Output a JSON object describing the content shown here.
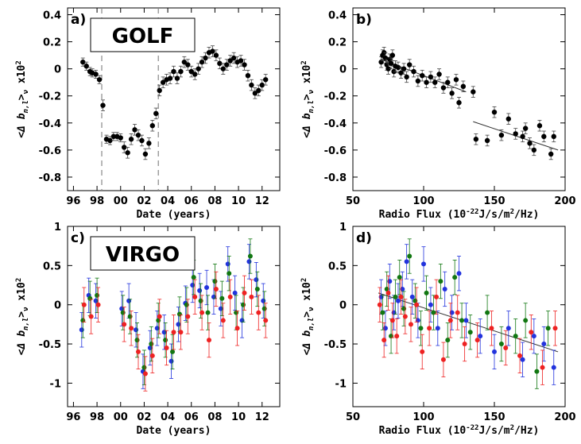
{
  "chart_data": [
    {
      "panel": "a)",
      "type": "scatter",
      "instrument_label": "GOLF",
      "xlabel": "Date (years)",
      "ylabel": "<Δ b_{n,l}>_ν x10^2",
      "xlim": [
        95.5,
        113.5
      ],
      "ylim": [
        -0.9,
        0.45
      ],
      "xticks": [
        96,
        98,
        100,
        102,
        104,
        106,
        108,
        110,
        112
      ],
      "xtick_labels": [
        "96",
        "98",
        "00",
        "02",
        "04",
        "06",
        "08",
        "10",
        "12"
      ],
      "yticks": [
        -0.8,
        -0.6,
        -0.4,
        -0.2,
        0,
        0.2,
        0.4
      ],
      "ytick_labels": [
        "-0.8",
        "-0.6",
        "-0.4",
        "-0.2",
        "0",
        "0.2",
        "0.4"
      ],
      "vlines": [
        98.4,
        103.2
      ],
      "error_bars": true,
      "series": [
        {
          "color": "#000000",
          "x": [
            96.8,
            97.1,
            97.4,
            97.6,
            97.9,
            98.2,
            98.5,
            98.8,
            99.1,
            99.4,
            99.7,
            100.0,
            100.3,
            100.6,
            100.9,
            101.2,
            101.5,
            101.8,
            102.1,
            102.4,
            102.7,
            103.0,
            103.3,
            103.6,
            103.9,
            104.2,
            104.5,
            104.8,
            105.1,
            105.4,
            105.7,
            106.0,
            106.3,
            106.6,
            106.9,
            107.2,
            107.5,
            107.8,
            108.1,
            108.4,
            108.7,
            109.0,
            109.3,
            109.6,
            109.9,
            110.2,
            110.5,
            110.8,
            111.1,
            111.4,
            111.7,
            112.0,
            112.3
          ],
          "y": [
            0.05,
            0.02,
            -0.02,
            -0.03,
            -0.04,
            -0.08,
            -0.27,
            -0.52,
            -0.53,
            -0.5,
            -0.5,
            -0.51,
            -0.58,
            -0.62,
            -0.52,
            -0.45,
            -0.49,
            -0.53,
            -0.63,
            -0.55,
            -0.42,
            -0.33,
            -0.16,
            -0.1,
            -0.08,
            -0.07,
            -0.02,
            -0.07,
            -0.02,
            0.05,
            0.03,
            -0.02,
            -0.04,
            0.0,
            0.05,
            0.08,
            0.12,
            0.13,
            0.1,
            0.04,
            0.0,
            0.03,
            0.06,
            0.08,
            0.05,
            0.06,
            0.03,
            -0.05,
            -0.12,
            -0.18,
            -0.16,
            -0.12,
            -0.08
          ],
          "err": [
            0.03,
            0.03,
            0.03,
            0.03,
            0.03,
            0.03,
            0.04,
            0.03,
            0.03,
            0.03,
            0.03,
            0.03,
            0.04,
            0.04,
            0.04,
            0.04,
            0.04,
            0.04,
            0.04,
            0.04,
            0.04,
            0.04,
            0.04,
            0.04,
            0.04,
            0.04,
            0.04,
            0.04,
            0.04,
            0.04,
            0.04,
            0.04,
            0.04,
            0.04,
            0.04,
            0.04,
            0.04,
            0.04,
            0.04,
            0.04,
            0.04,
            0.04,
            0.04,
            0.04,
            0.04,
            0.04,
            0.04,
            0.04,
            0.04,
            0.04,
            0.04,
            0.04,
            0.04
          ]
        }
      ]
    },
    {
      "panel": "b)",
      "type": "scatter",
      "xlabel": "Radio Flux (10^-22 J/s/m^2/Hz)",
      "ylabel": "<Δ b_{n,l}>_ν x10^2",
      "xlim": [
        50,
        200
      ],
      "ylim": [
        -0.9,
        0.45
      ],
      "xticks": [
        50,
        100,
        150,
        200
      ],
      "xtick_labels": [
        "50",
        "100",
        "150",
        "200"
      ],
      "yticks": [
        -0.8,
        -0.6,
        -0.4,
        -0.2,
        0,
        0.2,
        0.4
      ],
      "ytick_labels": [
        "-0.8",
        "-0.6",
        "-0.4",
        "-0.2",
        "0",
        "0.2",
        "0.4"
      ],
      "error_bars": true,
      "fit_lines": [
        {
          "x": [
            70,
            130
          ],
          "y": [
            0.07,
            -0.17
          ]
        },
        {
          "x": [
            135,
            195
          ],
          "y": [
            -0.39,
            -0.6
          ]
        }
      ],
      "series": [
        {
          "color": "#000000",
          "x": [
            70,
            71,
            72,
            73,
            74,
            75,
            76,
            77,
            78,
            79,
            80,
            82,
            84,
            86,
            88,
            90,
            93,
            96,
            99,
            102,
            105,
            108,
            111,
            114,
            117,
            120,
            123,
            125,
            128,
            135,
            137,
            145,
            150,
            155,
            160,
            165,
            170,
            172,
            175,
            178,
            182,
            185,
            190,
            192
          ],
          "y": [
            0.05,
            0.1,
            0.12,
            0.08,
            0.03,
            0.0,
            0.07,
            0.04,
            0.1,
            -0.02,
            0.02,
            0.01,
            -0.03,
            0.0,
            -0.06,
            0.03,
            -0.02,
            -0.09,
            -0.05,
            -0.1,
            -0.06,
            -0.1,
            -0.04,
            -0.14,
            -0.1,
            -0.18,
            -0.08,
            -0.25,
            -0.13,
            -0.17,
            -0.52,
            -0.53,
            -0.32,
            -0.49,
            -0.37,
            -0.48,
            -0.5,
            -0.44,
            -0.55,
            -0.6,
            -0.42,
            -0.5,
            -0.63,
            -0.5
          ],
          "err": [
            0.04,
            0.04,
            0.04,
            0.04,
            0.04,
            0.04,
            0.04,
            0.04,
            0.04,
            0.04,
            0.04,
            0.04,
            0.04,
            0.04,
            0.04,
            0.04,
            0.04,
            0.04,
            0.04,
            0.04,
            0.04,
            0.04,
            0.04,
            0.04,
            0.04,
            0.04,
            0.04,
            0.04,
            0.04,
            0.04,
            0.04,
            0.04,
            0.04,
            0.04,
            0.04,
            0.04,
            0.04,
            0.04,
            0.04,
            0.04,
            0.04,
            0.04,
            0.04,
            0.04
          ]
        }
      ]
    },
    {
      "panel": "c)",
      "type": "scatter",
      "instrument_label": "VIRGO",
      "xlabel": "Date (years)",
      "ylabel": "<Δ b_{n,l}>_ν x10^2",
      "xlim": [
        95.5,
        113.5
      ],
      "ylim": [
        -1.3,
        1.0
      ],
      "xticks": [
        96,
        98,
        100,
        102,
        104,
        106,
        108,
        110,
        112
      ],
      "xtick_labels": [
        "96",
        "98",
        "00",
        "02",
        "04",
        "06",
        "08",
        "10",
        "12"
      ],
      "yticks": [
        -1,
        -0.5,
        0,
        0.5,
        1
      ],
      "ytick_labels": [
        "-1",
        "-0.5",
        "0",
        "0.5",
        "1"
      ],
      "error_bars": true,
      "series": [
        {
          "color": "#2233dd",
          "x": [
            96.7,
            97.3,
            97.9,
            100.1,
            100.7,
            101.3,
            101.9,
            102.5,
            103.1,
            103.7,
            104.3,
            104.9,
            105.5,
            106.1,
            106.7,
            107.3,
            107.9,
            108.5,
            109.1,
            109.7,
            110.3,
            110.9,
            111.5,
            112.1
          ],
          "y": [
            -0.32,
            0.12,
            0.05,
            -0.05,
            0.05,
            -0.32,
            -0.85,
            -0.55,
            -0.3,
            -0.35,
            -0.72,
            -0.25,
            0.02,
            0.25,
            0.18,
            0.22,
            0.1,
            -0.05,
            0.52,
            0.15,
            -0.2,
            0.55,
            0.32,
            0.05
          ],
          "err": [
            0.22,
            0.22,
            0.22,
            0.22,
            0.22,
            0.22,
            0.22,
            0.22,
            0.22,
            0.22,
            0.22,
            0.22,
            0.22,
            0.22,
            0.22,
            0.22,
            0.22,
            0.22,
            0.22,
            0.22,
            0.22,
            0.22,
            0.22,
            0.22
          ]
        },
        {
          "color": "#117711",
          "x": [
            96.8,
            97.4,
            98.0,
            100.2,
            100.8,
            101.4,
            102.0,
            102.6,
            103.2,
            103.8,
            104.4,
            105.0,
            105.6,
            106.2,
            106.8,
            107.4,
            108.0,
            108.6,
            109.2,
            109.8,
            110.4,
            111.0,
            111.6,
            112.2
          ],
          "y": [
            -0.2,
            0.08,
            0.12,
            -0.1,
            -0.15,
            -0.45,
            -0.8,
            -0.5,
            -0.2,
            -0.45,
            -0.6,
            -0.12,
            0.0,
            0.35,
            0.05,
            -0.1,
            0.3,
            0.08,
            0.4,
            -0.1,
            0.0,
            0.62,
            0.2,
            -0.05
          ],
          "err": [
            0.22,
            0.22,
            0.22,
            0.22,
            0.22,
            0.22,
            0.22,
            0.22,
            0.22,
            0.22,
            0.22,
            0.22,
            0.22,
            0.22,
            0.22,
            0.22,
            0.22,
            0.22,
            0.22,
            0.22,
            0.22,
            0.22,
            0.22,
            0.22
          ]
        },
        {
          "color": "#ee2222",
          "x": [
            96.9,
            97.5,
            98.1,
            100.3,
            100.9,
            101.5,
            102.1,
            102.7,
            103.3,
            103.9,
            104.5,
            105.1,
            105.7,
            106.3,
            106.9,
            107.5,
            108.1,
            108.7,
            109.3,
            109.9,
            110.5,
            111.1,
            111.7,
            112.3
          ],
          "y": [
            0.0,
            -0.15,
            0.0,
            -0.25,
            -0.3,
            -0.6,
            -0.88,
            -0.65,
            -0.15,
            -0.55,
            -0.35,
            -0.35,
            -0.15,
            0.1,
            -0.1,
            -0.45,
            0.2,
            -0.2,
            0.1,
            -0.3,
            0.15,
            0.1,
            -0.1,
            -0.2
          ],
          "err": [
            0.22,
            0.22,
            0.22,
            0.22,
            0.22,
            0.22,
            0.22,
            0.22,
            0.22,
            0.22,
            0.22,
            0.22,
            0.22,
            0.22,
            0.22,
            0.22,
            0.22,
            0.22,
            0.22,
            0.22,
            0.22,
            0.22,
            0.22,
            0.22
          ]
        }
      ]
    },
    {
      "panel": "d)",
      "type": "scatter",
      "xlabel": "Radio Flux (10^-22 J/s/m^2/Hz)",
      "ylabel": "<Δ b_{n,l}>_ν x10^2",
      "xlim": [
        50,
        200
      ],
      "ylim": [
        -1.3,
        1.0
      ],
      "xticks": [
        50,
        100,
        150,
        200
      ],
      "xtick_labels": [
        "50",
        "100",
        "150",
        "200"
      ],
      "yticks": [
        -1,
        -0.5,
        0,
        0.5,
        1
      ],
      "ytick_labels": [
        "-1",
        "-0.5",
        "0",
        "0.5",
        "1"
      ],
      "error_bars": true,
      "fit_lines": [
        {
          "x": [
            68,
            195
          ],
          "y": [
            0.15,
            -0.6
          ]
        }
      ],
      "series": [
        {
          "color": "#2233dd",
          "x": [
            70,
            73,
            76,
            79,
            82,
            85,
            88,
            92,
            96,
            100,
            105,
            110,
            115,
            120,
            125,
            130,
            140,
            150,
            160,
            170,
            178,
            185,
            192
          ],
          "y": [
            0.1,
            -0.3,
            0.3,
            -0.1,
            0.05,
            0.2,
            0.55,
            0.1,
            -0.2,
            0.52,
            0.0,
            -0.3,
            0.2,
            -0.1,
            0.4,
            -0.2,
            -0.4,
            -0.6,
            -0.3,
            -0.7,
            -0.4,
            -0.5,
            -0.8
          ],
          "err": [
            0.22,
            0.22,
            0.22,
            0.22,
            0.22,
            0.22,
            0.22,
            0.22,
            0.22,
            0.22,
            0.22,
            0.22,
            0.22,
            0.22,
            0.22,
            0.22,
            0.22,
            0.22,
            0.22,
            0.22,
            0.22,
            0.22,
            0.22
          ]
        },
        {
          "color": "#117711",
          "x": [
            71,
            74,
            77,
            80,
            83,
            86,
            90,
            94,
            98,
            102,
            107,
            112,
            117,
            122,
            127,
            133,
            145,
            155,
            165,
            172,
            180,
            188
          ],
          "y": [
            -0.1,
            0.2,
            -0.4,
            0.1,
            0.35,
            -0.05,
            0.62,
            0.05,
            -0.3,
            0.15,
            -0.1,
            0.3,
            -0.45,
            0.35,
            -0.2,
            -0.35,
            -0.1,
            -0.5,
            -0.4,
            -0.2,
            -0.85,
            -0.3
          ],
          "err": [
            0.22,
            0.22,
            0.22,
            0.22,
            0.22,
            0.22,
            0.22,
            0.22,
            0.22,
            0.22,
            0.22,
            0.22,
            0.22,
            0.22,
            0.22,
            0.22,
            0.22,
            0.22,
            0.22,
            0.22,
            0.22,
            0.22
          ]
        },
        {
          "color": "#ee2222",
          "x": [
            69,
            72,
            75,
            78,
            81,
            84,
            87,
            91,
            95,
            99,
            104,
            109,
            114,
            119,
            124,
            129,
            138,
            148,
            158,
            168,
            176,
            184,
            193
          ],
          "y": [
            0.0,
            -0.45,
            0.15,
            -0.2,
            -0.4,
            0.1,
            -0.15,
            -0.25,
            0.0,
            -0.6,
            -0.3,
            0.1,
            -0.7,
            -0.2,
            -0.1,
            -0.5,
            -0.45,
            -0.3,
            -0.55,
            -0.65,
            -0.35,
            -0.8,
            -0.3
          ],
          "err": [
            0.22,
            0.22,
            0.22,
            0.22,
            0.22,
            0.22,
            0.22,
            0.22,
            0.22,
            0.22,
            0.22,
            0.22,
            0.22,
            0.22,
            0.22,
            0.22,
            0.22,
            0.22,
            0.22,
            0.22,
            0.22,
            0.22,
            0.22
          ]
        }
      ]
    }
  ]
}
